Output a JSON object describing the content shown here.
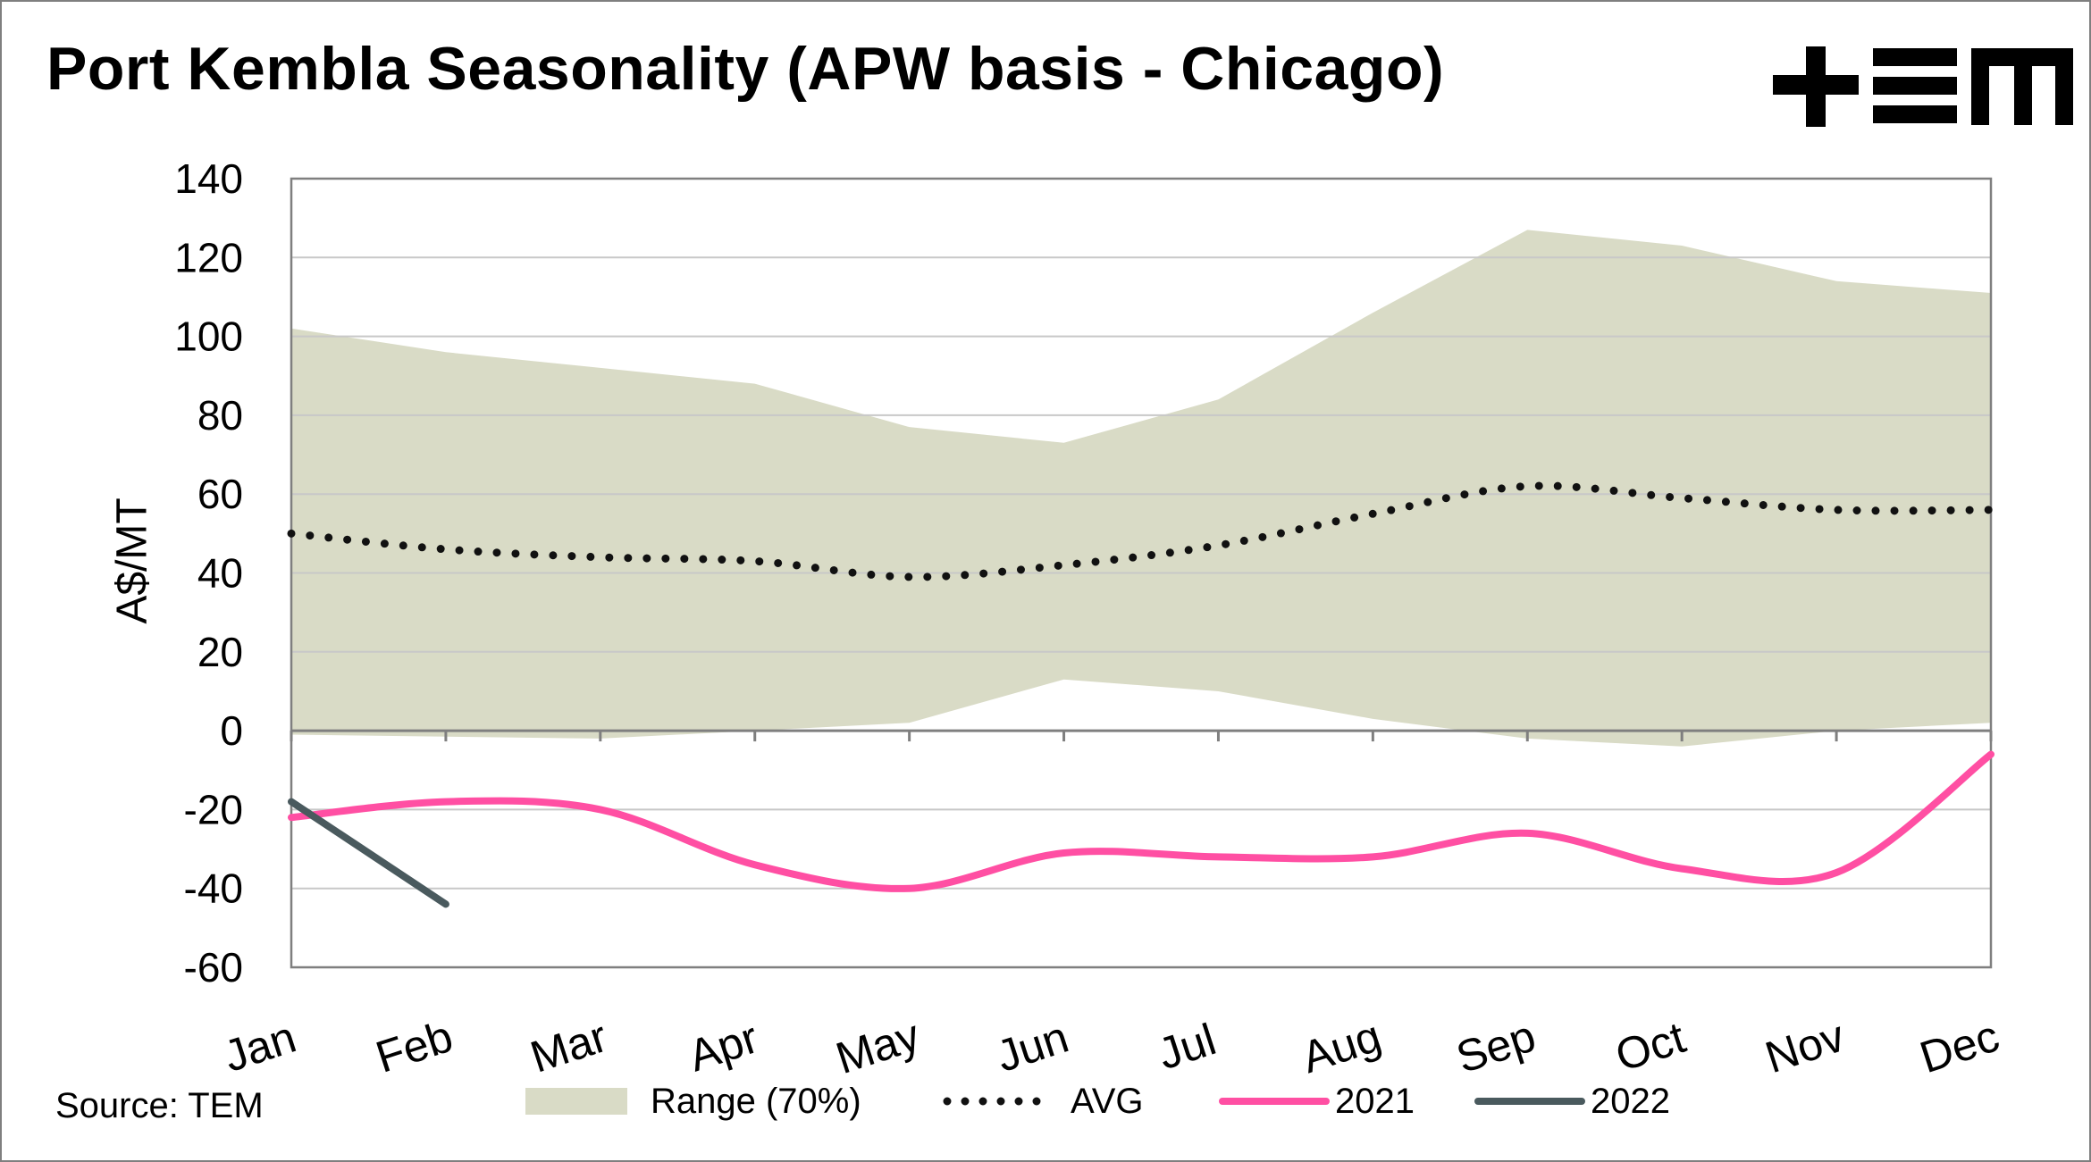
{
  "title": "Port Kembla Seasonality (APW basis - Chicago)",
  "source": "Source: TEM",
  "logo": {
    "text": "+EM",
    "icon": "tem-logo"
  },
  "colors": {
    "range": "#d9dbc6",
    "avg": "#111111",
    "s2021": "#ff4fa3",
    "s2022": "#4a5a5e",
    "grid": "#c8c8c8",
    "axis": "#7f7f7f"
  },
  "legend": {
    "range": "Range (70%)",
    "avg": "AVG",
    "s2021": "2021",
    "s2022": "2022"
  },
  "chart_data": {
    "type": "line",
    "ylabel": "A$/MT",
    "ylim": [
      -60,
      140
    ],
    "yticks": [
      140,
      120,
      100,
      80,
      60,
      40,
      20,
      0,
      -20,
      -40,
      -60
    ],
    "categories": [
      "Jan",
      "Feb",
      "Mar",
      "Apr",
      "May",
      "Jun",
      "Jul",
      "Aug",
      "Sep",
      "Oct",
      "Nov",
      "Dec"
    ],
    "grid": "horizontal",
    "legend_position": "bottom",
    "range_band": {
      "name": "Range (70%)",
      "upper": [
        102,
        96,
        92,
        88,
        77,
        73,
        84,
        106,
        127,
        123,
        114,
        111
      ],
      "lower": [
        -1,
        -1.5,
        -2,
        0,
        2,
        13,
        10,
        3,
        -2,
        -4,
        0,
        2
      ]
    },
    "series": [
      {
        "name": "AVG",
        "style": "dotted",
        "values": [
          50,
          46,
          44,
          43,
          39,
          42,
          47,
          55,
          62,
          59,
          56,
          56
        ]
      },
      {
        "name": "2021",
        "style": "solid",
        "values": [
          -22,
          -18,
          -20,
          -34,
          -40,
          -31,
          -32,
          -32,
          -26,
          -35,
          -36,
          -6
        ]
      },
      {
        "name": "2022",
        "style": "solid",
        "values": [
          -18,
          -44,
          null,
          null,
          null,
          null,
          null,
          null,
          null,
          null,
          null,
          null
        ]
      }
    ]
  }
}
